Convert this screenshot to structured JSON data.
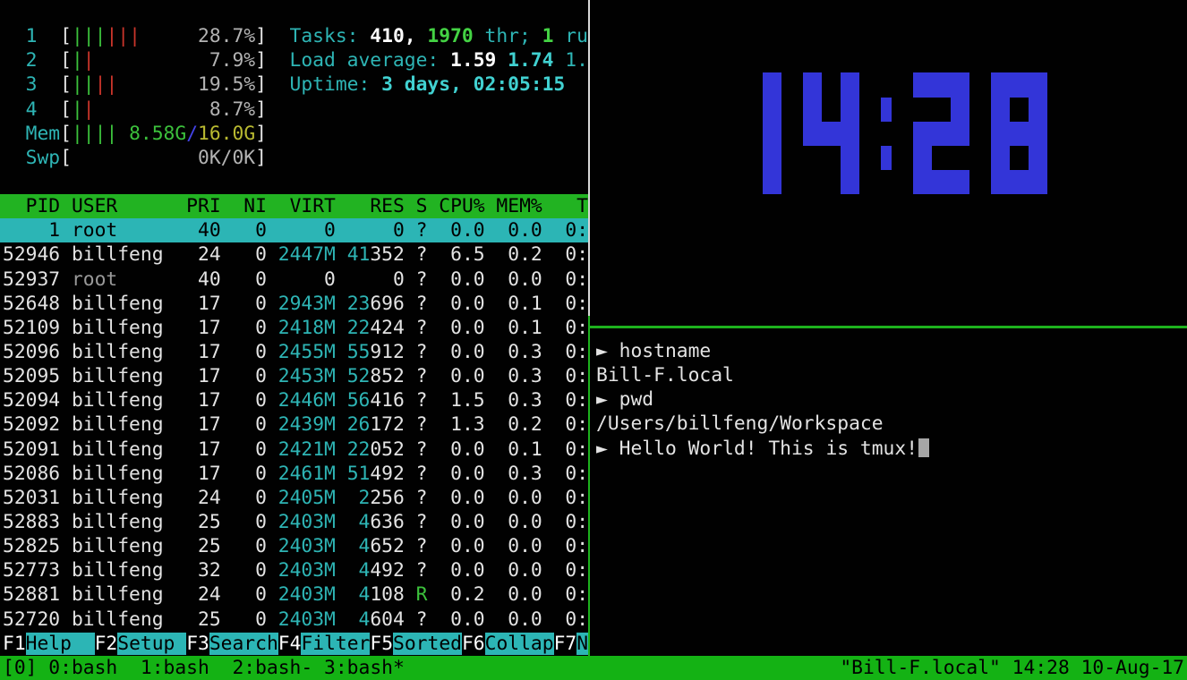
{
  "colors": {
    "clock_blue": "#3335d8",
    "status_green": "#14b214",
    "header_green": "#22b322",
    "selection_cyan": "#2cb5b5",
    "fkey_cyan": "#2cb5b5",
    "active_border_green": "#1db21d",
    "inactive_border_white": "#d8d8d8",
    "bar_green": "#3cc13c",
    "bar_red": "#cb352b"
  },
  "htop": {
    "meters": [
      {
        "label": "1",
        "bars": "gggrrr",
        "value": [
          [
            "28.7%",
            "gray"
          ]
        ]
      },
      {
        "label": "2",
        "bars": "gr",
        "value": [
          [
            "7.9%",
            "gray"
          ]
        ]
      },
      {
        "label": "3",
        "bars": "ggrr",
        "value": [
          [
            "19.5%",
            "gray"
          ]
        ]
      },
      {
        "label": "4",
        "bars": "gr",
        "value": [
          [
            "8.7%",
            "gray"
          ]
        ]
      },
      {
        "label": "Mem",
        "bars": "gggg",
        "value": [
          [
            "8.58G",
            "g"
          ],
          [
            "/",
            "blue"
          ],
          [
            "16.0G",
            "yel"
          ]
        ]
      },
      {
        "label": "Swp",
        "bars": "",
        "value": [
          [
            "0K/0K",
            "gray"
          ]
        ]
      }
    ],
    "info_lines": [
      {
        "name": "tasks-line",
        "segs": [
          [
            "Tasks: ",
            "cyan"
          ],
          [
            "410, ",
            "wb"
          ],
          [
            "1970",
            "gb"
          ],
          [
            " thr; ",
            "cyan"
          ],
          [
            "1",
            "gb"
          ],
          [
            " ru",
            "cyan"
          ]
        ]
      },
      {
        "name": "load-average-line",
        "segs": [
          [
            "Load average: ",
            "cyan"
          ],
          [
            "1.59 ",
            "wb"
          ],
          [
            "1.74 ",
            "cyanb"
          ],
          [
            "1.",
            "cyan"
          ]
        ]
      },
      {
        "name": "uptime-line",
        "segs": [
          [
            "Uptime: ",
            "cyan"
          ],
          [
            "3 days, 02:05:15",
            "cyanb"
          ]
        ]
      }
    ],
    "table": {
      "header": {
        "pid": "PID",
        "user": "USER",
        "pri": "PRI",
        "ni": "NI",
        "virt": "VIRT",
        "res": "RES",
        "s": "S",
        "cpu": "CPU%",
        "mem": "MEM%",
        "time": "T"
      },
      "rows": [
        {
          "pid": "1",
          "user": "root",
          "pri": "40",
          "ni": "0",
          "virt": "0",
          "res_hi": "",
          "res_lo": "0",
          "s": "?",
          "cpu": "0.0",
          "mem": "0.0",
          "time": "0:",
          "selected": true
        },
        {
          "pid": "52946",
          "user": "billfeng",
          "pri": "24",
          "ni": "0",
          "virt": "2447M",
          "res_hi": "41",
          "res_lo": "352",
          "s": "?",
          "cpu": "6.5",
          "mem": "0.2",
          "time": "0:"
        },
        {
          "pid": "52937",
          "user": "root",
          "dim": true,
          "pri": "40",
          "ni": "0",
          "virt": "0",
          "res_hi": "",
          "res_lo": "0",
          "s": "?",
          "cpu": "0.0",
          "mem": "0.0",
          "time": "0:"
        },
        {
          "pid": "52648",
          "user": "billfeng",
          "pri": "17",
          "ni": "0",
          "virt": "2943M",
          "res_hi": "23",
          "res_lo": "696",
          "s": "?",
          "cpu": "0.0",
          "mem": "0.1",
          "time": "0:"
        },
        {
          "pid": "52109",
          "user": "billfeng",
          "pri": "17",
          "ni": "0",
          "virt": "2418M",
          "res_hi": "22",
          "res_lo": "424",
          "s": "?",
          "cpu": "0.0",
          "mem": "0.1",
          "time": "0:"
        },
        {
          "pid": "52096",
          "user": "billfeng",
          "pri": "17",
          "ni": "0",
          "virt": "2455M",
          "res_hi": "55",
          "res_lo": "912",
          "s": "?",
          "cpu": "0.0",
          "mem": "0.3",
          "time": "0:"
        },
        {
          "pid": "52095",
          "user": "billfeng",
          "pri": "17",
          "ni": "0",
          "virt": "2453M",
          "res_hi": "52",
          "res_lo": "852",
          "s": "?",
          "cpu": "0.0",
          "mem": "0.3",
          "time": "0:"
        },
        {
          "pid": "52094",
          "user": "billfeng",
          "pri": "17",
          "ni": "0",
          "virt": "2446M",
          "res_hi": "56",
          "res_lo": "416",
          "s": "?",
          "cpu": "1.5",
          "mem": "0.3",
          "time": "0:"
        },
        {
          "pid": "52092",
          "user": "billfeng",
          "pri": "17",
          "ni": "0",
          "virt": "2439M",
          "res_hi": "26",
          "res_lo": "172",
          "s": "?",
          "cpu": "1.3",
          "mem": "0.2",
          "time": "0:"
        },
        {
          "pid": "52091",
          "user": "billfeng",
          "pri": "17",
          "ni": "0",
          "virt": "2421M",
          "res_hi": "22",
          "res_lo": "052",
          "s": "?",
          "cpu": "0.0",
          "mem": "0.1",
          "time": "0:"
        },
        {
          "pid": "52086",
          "user": "billfeng",
          "pri": "17",
          "ni": "0",
          "virt": "2461M",
          "res_hi": "51",
          "res_lo": "492",
          "s": "?",
          "cpu": "0.0",
          "mem": "0.3",
          "time": "0:"
        },
        {
          "pid": "52031",
          "user": "billfeng",
          "pri": "24",
          "ni": "0",
          "virt": "2405M",
          "res_hi": "2",
          "res_lo": "256",
          "s": "?",
          "cpu": "0.0",
          "mem": "0.0",
          "time": "0:"
        },
        {
          "pid": "52883",
          "user": "billfeng",
          "pri": "25",
          "ni": "0",
          "virt": "2403M",
          "res_hi": "4",
          "res_lo": "636",
          "s": "?",
          "cpu": "0.0",
          "mem": "0.0",
          "time": "0:"
        },
        {
          "pid": "52825",
          "user": "billfeng",
          "pri": "25",
          "ni": "0",
          "virt": "2403M",
          "res_hi": "4",
          "res_lo": "652",
          "s": "?",
          "cpu": "0.0",
          "mem": "0.0",
          "time": "0:"
        },
        {
          "pid": "52773",
          "user": "billfeng",
          "pri": "32",
          "ni": "0",
          "virt": "2403M",
          "res_hi": "4",
          "res_lo": "492",
          "s": "?",
          "cpu": "0.0",
          "mem": "0.0",
          "time": "0:"
        },
        {
          "pid": "52881",
          "user": "billfeng",
          "pri": "24",
          "ni": "0",
          "virt": "2403M",
          "res_hi": "4",
          "res_lo": "108",
          "s": "R",
          "cpu": "0.2",
          "mem": "0.0",
          "time": "0:"
        },
        {
          "pid": "52720",
          "user": "billfeng",
          "pri": "25",
          "ni": "0",
          "virt": "2403M",
          "res_hi": "4",
          "res_lo": "604",
          "s": "?",
          "cpu": "0.0",
          "mem": "0.0",
          "time": "0:"
        }
      ]
    },
    "fkeys": [
      {
        "key": "F1",
        "label": "Help  "
      },
      {
        "key": "F2",
        "label": "Setup "
      },
      {
        "key": "F3",
        "label": "Search"
      },
      {
        "key": "F4",
        "label": "Filter"
      },
      {
        "key": "F5",
        "label": "Sorted"
      },
      {
        "key": "F6",
        "label": "Collap"
      },
      {
        "key": "F7",
        "label": "N"
      }
    ]
  },
  "clock": {
    "time": "14:28",
    "color": "#3335d8"
  },
  "terminal": {
    "prompt": "►",
    "lines": [
      {
        "prompt": true,
        "text": "hostname"
      },
      {
        "prompt": false,
        "text": "Bill-F.local"
      },
      {
        "prompt": true,
        "text": "pwd"
      },
      {
        "prompt": false,
        "text": "/Users/billfeng/Workspace"
      },
      {
        "prompt": true,
        "text": "Hello World! This is tmux!",
        "cursor": true
      }
    ]
  },
  "tmux": {
    "session": "[0] ",
    "windows": [
      "0:bash  ",
      "1:bash  ",
      "2:bash- ",
      "3:bash*"
    ],
    "right": "\"Bill-F.local\" 14:28 10-Aug-17"
  }
}
